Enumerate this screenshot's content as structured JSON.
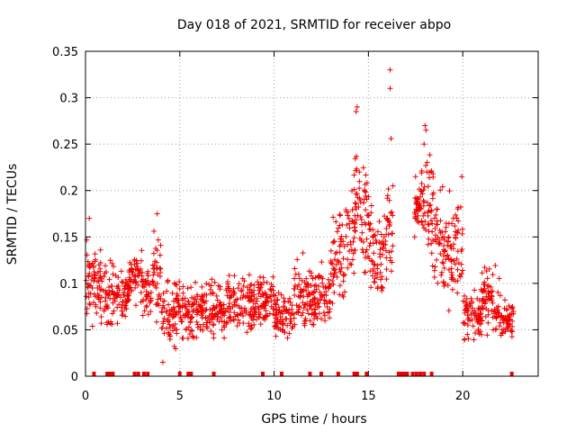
{
  "chart_data": {
    "type": "scatter",
    "title": "Day 018 of 2021, SRMTID for receiver abpo",
    "xlabel": "GPS time / hours",
    "ylabel": "SRMTID / TECUs",
    "xlim": [
      0,
      24
    ],
    "ylim": [
      0,
      0.35
    ],
    "grid": true,
    "marker": "+",
    "color": "#ee0000",
    "x_ticks": [
      0,
      5,
      10,
      15,
      20
    ],
    "x_tick_labels": [
      "0",
      "5",
      "10",
      "15",
      "20"
    ],
    "y_ticks": [
      0,
      0.05,
      0.1,
      0.15,
      0.2,
      0.25,
      0.3,
      0.35
    ],
    "y_tick_labels": [
      "0",
      "0.05",
      "0.1",
      "0.15",
      "0.2",
      "0.25",
      "0.3",
      "0.35"
    ],
    "series": [
      {
        "name": "SRMTID",
        "envelope_note": "approximate per-interval value ranges read from the plot",
        "envelope": [
          {
            "x": [
              0.0,
              0.3
            ],
            "y": [
              0.03,
              0.17
            ]
          },
          {
            "x": [
              0.3,
              1.0
            ],
            "y": [
              0.04,
              0.15
            ]
          },
          {
            "x": [
              1.0,
              1.5
            ],
            "y": [
              0.04,
              0.14
            ]
          },
          {
            "x": [
              1.5,
              2.3
            ],
            "y": [
              0.05,
              0.12
            ]
          },
          {
            "x": [
              2.3,
              3.0
            ],
            "y": [
              0.07,
              0.15
            ]
          },
          {
            "x": [
              3.0,
              3.5
            ],
            "y": [
              0.05,
              0.13
            ]
          },
          {
            "x": [
              3.5,
              4.0
            ],
            "y": [
              0.05,
              0.17
            ]
          },
          {
            "x": [
              4.0,
              5.0
            ],
            "y": [
              0.02,
              0.12
            ]
          },
          {
            "x": [
              5.0,
              6.0
            ],
            "y": [
              0.03,
              0.11
            ]
          },
          {
            "x": [
              6.0,
              7.5
            ],
            "y": [
              0.03,
              0.11
            ]
          },
          {
            "x": [
              7.5,
              9.0
            ],
            "y": [
              0.03,
              0.12
            ]
          },
          {
            "x": [
              9.0,
              10.0
            ],
            "y": [
              0.04,
              0.12
            ]
          },
          {
            "x": [
              10.0,
              11.0
            ],
            "y": [
              0.03,
              0.1
            ]
          },
          {
            "x": [
              11.0,
              12.0
            ],
            "y": [
              0.03,
              0.14
            ]
          },
          {
            "x": [
              12.0,
              13.0
            ],
            "y": [
              0.04,
              0.13
            ]
          },
          {
            "x": [
              13.0,
              13.8
            ],
            "y": [
              0.06,
              0.19
            ]
          },
          {
            "x": [
              13.8,
              14.3
            ],
            "y": [
              0.08,
              0.25
            ]
          },
          {
            "x": [
              14.3,
              14.6
            ],
            "y": [
              0.1,
              0.29
            ]
          },
          {
            "x": [
              14.6,
              15.2
            ],
            "y": [
              0.07,
              0.25
            ]
          },
          {
            "x": [
              15.2,
              15.8
            ],
            "y": [
              0.05,
              0.2
            ]
          },
          {
            "x": [
              15.8,
              16.3
            ],
            "y": [
              0.08,
              0.22
            ]
          },
          {
            "x": [
              17.4,
              17.8
            ],
            "y": [
              0.15,
              0.22
            ]
          },
          {
            "x": [
              17.8,
              18.5
            ],
            "y": [
              0.1,
              0.27
            ]
          },
          {
            "x": [
              18.5,
              19.4
            ],
            "y": [
              0.06,
              0.22
            ]
          },
          {
            "x": [
              19.4,
              20.0
            ],
            "y": [
              0.06,
              0.22
            ]
          },
          {
            "x": [
              20.0,
              21.0
            ],
            "y": [
              0.03,
              0.1
            ]
          },
          {
            "x": [
              21.0,
              22.0
            ],
            "y": [
              0.03,
              0.13
            ]
          },
          {
            "x": [
              22.0,
              22.7
            ],
            "y": [
              0.03,
              0.09
            ]
          }
        ],
        "notable_points": [
          {
            "x": 16.15,
            "y": 0.33
          },
          {
            "x": 16.15,
            "y": 0.31
          },
          {
            "x": 16.2,
            "y": 0.256
          },
          {
            "x": 14.4,
            "y": 0.29
          },
          {
            "x": 14.35,
            "y": 0.285
          },
          {
            "x": 18.0,
            "y": 0.27
          },
          {
            "x": 18.05,
            "y": 0.265
          },
          {
            "x": 17.95,
            "y": 0.25
          },
          {
            "x": 18.1,
            "y": 0.22
          },
          {
            "x": 17.5,
            "y": 0.215
          },
          {
            "x": 17.55,
            "y": 0.18
          },
          {
            "x": 17.45,
            "y": 0.15
          },
          {
            "x": 19.95,
            "y": 0.215
          },
          {
            "x": 16.3,
            "y": 0.205
          },
          {
            "x": 4.1,
            "y": 0.015
          },
          {
            "x": 3.8,
            "y": 0.175
          },
          {
            "x": 0.2,
            "y": 0.17
          }
        ],
        "baseline_markers_x": [
          0.45,
          1.15,
          1.3,
          1.45,
          2.6,
          2.8,
          3.1,
          3.3,
          5.0,
          5.45,
          5.6,
          6.8,
          9.4,
          10.4,
          11.9,
          12.5,
          13.4,
          14.25,
          14.4,
          14.9,
          16.6,
          16.75,
          16.9,
          17.05,
          17.35,
          17.55,
          17.75,
          17.95,
          18.35,
          22.6
        ]
      }
    ]
  }
}
